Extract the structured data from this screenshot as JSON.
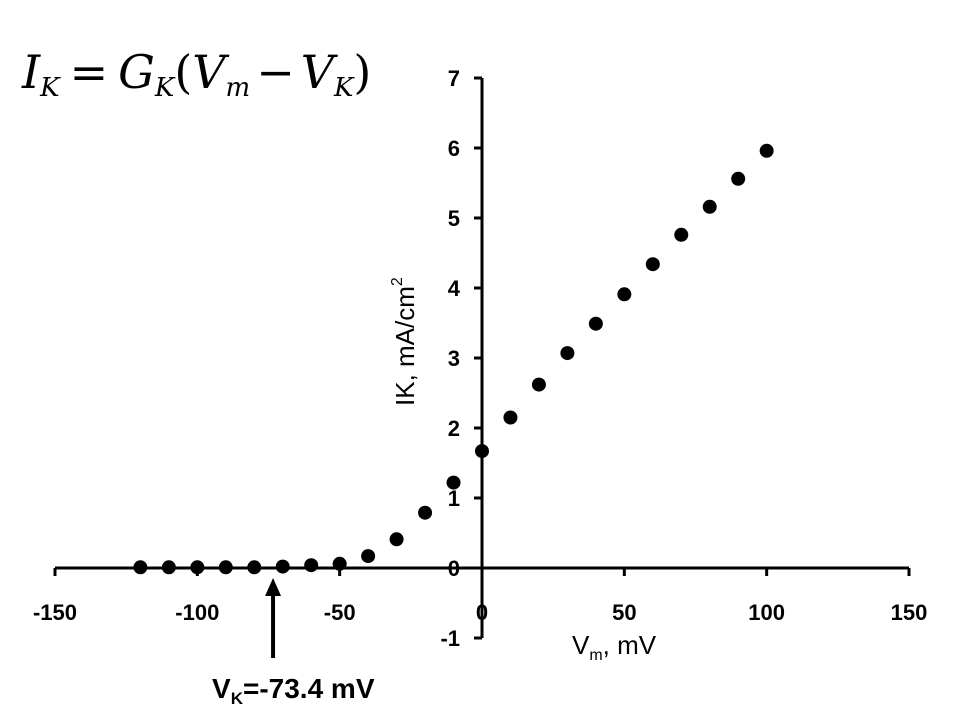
{
  "equation": {
    "lhs": "I",
    "lhs_sub": "K",
    "eq": "=",
    "g": "G",
    "g_sub": "K",
    "open": "(",
    "v1": "V",
    "v1_sub": "m",
    "minus": "−",
    "v2": "V",
    "v2_sub": "K",
    "close": ")"
  },
  "annotation": {
    "v": "V",
    "sub": "K",
    "rest": "=-73.4 mV",
    "x_value": -73.4
  },
  "chart_data": {
    "type": "scatter",
    "title": "",
    "xlabel_main": "V",
    "xlabel_sub": "m",
    "xlabel_rest": ", mV",
    "ylabel_main": "IK, mA/cm",
    "ylabel_sup": "2",
    "xlim": [
      -150,
      150
    ],
    "ylim": [
      -1,
      7
    ],
    "xticks": [
      -150,
      -100,
      -50,
      0,
      50,
      100,
      150
    ],
    "xtick_labels": [
      "-150",
      "-100",
      "-50",
      "0",
      "50",
      "100",
      "150"
    ],
    "yticks": [
      -1,
      0,
      1,
      2,
      3,
      4,
      5,
      6,
      7
    ],
    "ytick_labels": [
      "-1",
      "0",
      "1",
      "2",
      "3",
      "4",
      "5",
      "6",
      "7"
    ],
    "grid": false,
    "series": [
      {
        "x": [
          -120,
          -110,
          -100,
          -90,
          -80,
          -70,
          -60,
          -50,
          -40,
          -30,
          -20,
          -10,
          0,
          10,
          20,
          30,
          40,
          50,
          60,
          70,
          80,
          90,
          100
        ],
        "y": [
          0.01,
          0.01,
          0.01,
          0.01,
          0.01,
          0.02,
          0.04,
          0.06,
          0.17,
          0.41,
          0.79,
          1.22,
          1.67,
          2.15,
          2.62,
          3.07,
          3.49,
          3.91,
          4.34,
          4.76,
          5.16,
          5.56,
          5.96
        ],
        "color": "#000000"
      }
    ]
  }
}
